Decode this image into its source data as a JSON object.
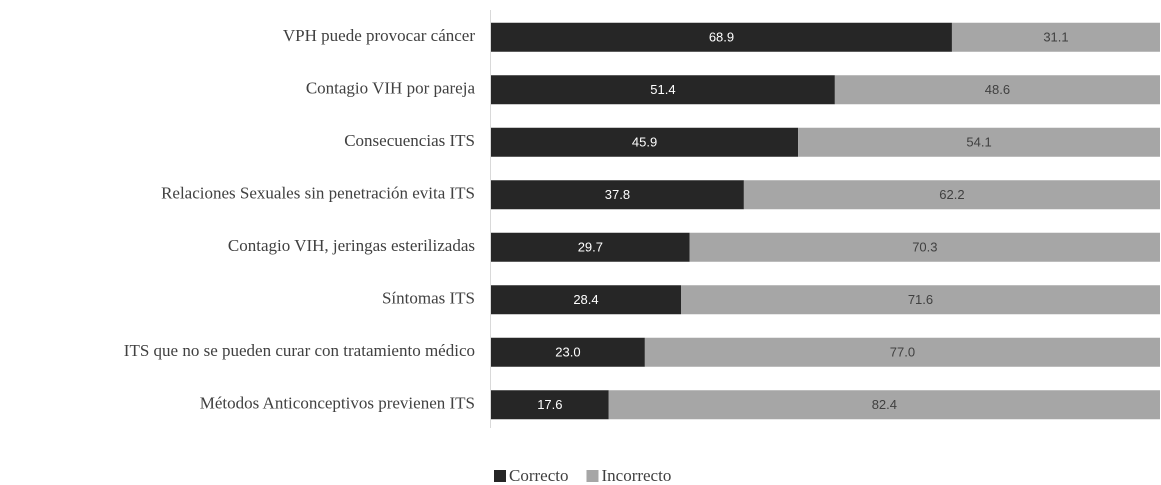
{
  "chart_data": {
    "type": "stacked-bar-horizontal",
    "categories": [
      "VPH puede provocar cáncer",
      "Contagio VIH por pareja",
      "Consecuencias ITS",
      "Relaciones Sexuales sin penetración evita ITS",
      "Contagio VIH, jeringas esterilizadas",
      "Síntomas ITS",
      "ITS que no se pueden curar con tratamiento médico",
      "Métodos Anticonceptivos previenen ITS"
    ],
    "series": [
      {
        "name": "Correcto",
        "color": "#262626",
        "label_color": "#ffffff",
        "values": [
          68.9,
          51.4,
          45.9,
          37.8,
          29.7,
          28.4,
          23.0,
          17.6
        ],
        "value_labels": [
          "68.9",
          "51.4",
          "45.9",
          "37.8",
          "29.7",
          "28.4",
          "23.0",
          "17.6"
        ]
      },
      {
        "name": "Incorrecto",
        "color": "#a6a6a6",
        "label_color": "#404040",
        "values": [
          31.1,
          48.6,
          54.1,
          62.2,
          70.3,
          71.6,
          77.0,
          82.4
        ],
        "value_labels": [
          "31.1",
          "48.6",
          "54.1",
          "62.2",
          "70.3",
          "71.6",
          "77.0",
          "82.4"
        ]
      }
    ],
    "xlim": [
      0,
      100
    ],
    "legend": "bottom"
  }
}
